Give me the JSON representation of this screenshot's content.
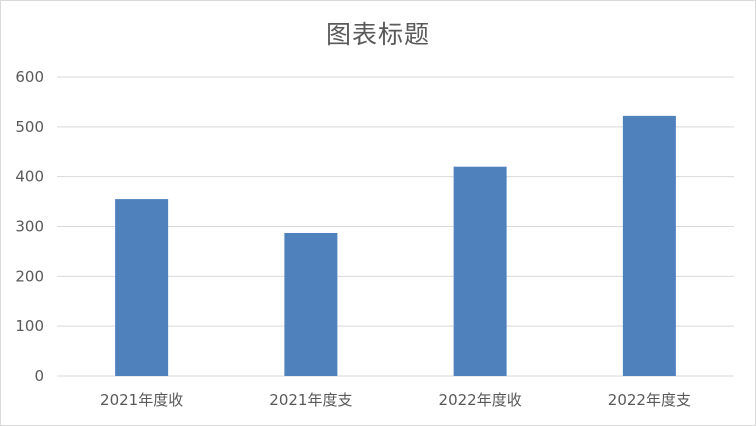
{
  "chart_data": {
    "type": "bar",
    "title": "图表标题",
    "categories": [
      "2021年度收",
      "2021年度支",
      "2022年度收",
      "2022年度支"
    ],
    "values": [
      355,
      287,
      420,
      522
    ],
    "ylim": [
      0,
      600
    ],
    "yticks": [
      0,
      100,
      200,
      300,
      400,
      500,
      600
    ],
    "grid": true,
    "legend": "none",
    "bar_color": "#4f81bd",
    "grid_color": "#d9d9d9",
    "axis_color": "#d9d9d9",
    "text_color": "#595959"
  }
}
